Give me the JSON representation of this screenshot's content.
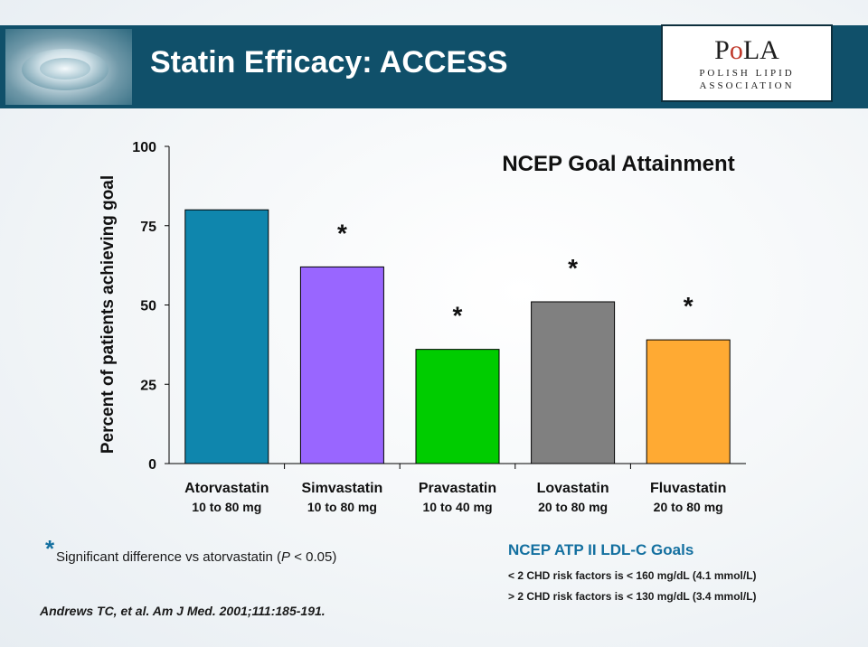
{
  "slide": {
    "title": "Statin Efficacy: ACCESS"
  },
  "logo": {
    "mark": "PoLA",
    "line1": "POLISH LIPID",
    "line2": "ASSOCIATION"
  },
  "chart_data": {
    "type": "bar",
    "title": "NCEP Goal Attainment",
    "ylabel": "Percent of patients achieving goal",
    "ylim": [
      0,
      100
    ],
    "yticks": [
      0,
      25,
      50,
      75,
      100
    ],
    "categories": [
      "Atorvastatin",
      "Simvastatin",
      "Pravastatin",
      "Lovastatin",
      "Fluvastatin"
    ],
    "doses": [
      "10 to 80 mg",
      "10 to 80 mg",
      "10 to 40 mg",
      "20 to 80 mg",
      "20 to 80 mg"
    ],
    "values": [
      80,
      62,
      36,
      51,
      39
    ],
    "colors": [
      "#0f86ad",
      "#9966ff",
      "#00cc00",
      "#808080",
      "#ffaa33"
    ],
    "significance": [
      "",
      "*",
      "*",
      "*",
      "*"
    ],
    "grid": false
  },
  "footnote": {
    "marker": "*",
    "text_prefix": "Significant difference vs atorvastatin (",
    "text_italic": "P",
    "text_suffix": " < 0.05)",
    "reference": "Andrews TC, et al. Am J Med. 2001;111:185-191."
  },
  "goals": {
    "title": "NCEP ATP II LDL-C Goals",
    "lines": [
      "< 2 CHD risk factors is < 160 mg/dL (4.1 mmol/L)",
      "> 2 CHD risk factors is < 130 mg/dL (3.4 mmol/L)"
    ]
  }
}
